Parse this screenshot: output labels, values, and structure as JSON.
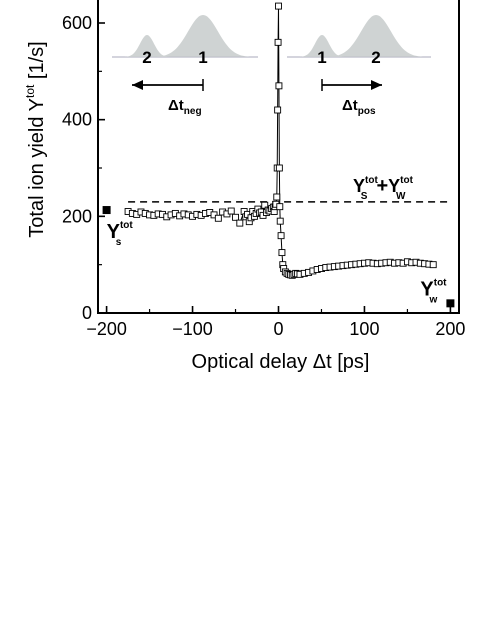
{
  "chart_data": {
    "type": "scatter",
    "title": "",
    "xlabel": "Optical delay Δt [ps]",
    "ylabel": {
      "main": "Total ion yield Y",
      "sup": "tot",
      "unit": "[1/s]"
    },
    "xlim": [
      -210,
      210
    ],
    "ylim": [
      0,
      660
    ],
    "xticks": [
      -200,
      -100,
      0,
      100,
      200
    ],
    "yticks": [
      0,
      200,
      400,
      600
    ],
    "grid": false,
    "dashed_line": {
      "y": 230,
      "x_from": -175,
      "x_to": 200,
      "label": {
        "y1": "Y",
        "sup1": "tot",
        "sub1": "S",
        "plus": "+",
        "y2": "Y",
        "sup2": "tot",
        "sub2": "W"
      }
    },
    "reference_points": [
      {
        "x": -200,
        "y": 213,
        "label": {
          "main": "Y",
          "sup": "tot",
          "sub": "s"
        }
      },
      {
        "x": 200,
        "y": 20,
        "label": {
          "main": "Y",
          "sup": "tot",
          "sub": "w"
        }
      }
    ],
    "series": [
      {
        "marker": "open-square",
        "x": [
          -175,
          -170,
          -165,
          -160,
          -155,
          -150,
          -145,
          -140,
          -135,
          -130,
          -125,
          -120,
          -115,
          -110,
          -105,
          -100,
          -95,
          -90,
          -85,
          -80,
          -75,
          -70,
          -65,
          -60,
          -55,
          -50,
          -45,
          -40,
          -38,
          -36,
          -34,
          -32,
          -30,
          -28,
          -26,
          -24,
          -22,
          -20,
          -18,
          -16,
          -14,
          -12,
          -10,
          -8,
          -6,
          -5,
          -4,
          -3,
          -2,
          -1.5,
          -1,
          -0.5,
          0,
          0.5,
          1,
          1.5,
          2,
          3,
          4,
          5,
          6,
          8,
          10,
          12,
          14,
          16,
          18,
          20,
          22,
          25,
          30,
          35,
          40,
          45,
          50,
          55,
          60,
          65,
          70,
          75,
          80,
          85,
          90,
          95,
          100,
          105,
          110,
          115,
          120,
          125,
          130,
          135,
          140,
          145,
          150,
          155,
          160,
          165,
          170,
          175,
          180
        ],
        "y": [
          210,
          206,
          204,
          209,
          206,
          203,
          202,
          205,
          204,
          199,
          203,
          206,
          201,
          205,
          203,
          200,
          204,
          202,
          206,
          208,
          203,
          196,
          209,
          205,
          211,
          198,
          186,
          210,
          199,
          204,
          189,
          197,
          210,
          200,
          206,
          215,
          207,
          209,
          202,
          223,
          208,
          213,
          211,
          216,
          219,
          210,
          220,
          225,
          240,
          300,
          420,
          560,
          635,
          470,
          300,
          220,
          190,
          160,
          125,
          100,
          92,
          85,
          82,
          80,
          79,
          78,
          80,
          82,
          81,
          80,
          82,
          84,
          87,
          90,
          92,
          94,
          95,
          96,
          97,
          98,
          99,
          100,
          101,
          102,
          103,
          104,
          103,
          102,
          103,
          104,
          105,
          103,
          104,
          103,
          106,
          104,
          105,
          103,
          102,
          101,
          100
        ]
      }
    ],
    "insets": [
      {
        "pulses": [
          {
            "number": "2"
          },
          {
            "number": "1"
          }
        ],
        "arrow_direction": "left",
        "label": {
          "main": "Δt",
          "sub": "neg"
        }
      },
      {
        "pulses": [
          {
            "number": "1"
          },
          {
            "number": "2"
          }
        ],
        "arrow_direction": "right",
        "label": {
          "main": "Δt",
          "sub": "pos"
        }
      }
    ],
    "colors": {
      "pulse_fill": "#cfd3d3",
      "axis": "#000000"
    }
  }
}
